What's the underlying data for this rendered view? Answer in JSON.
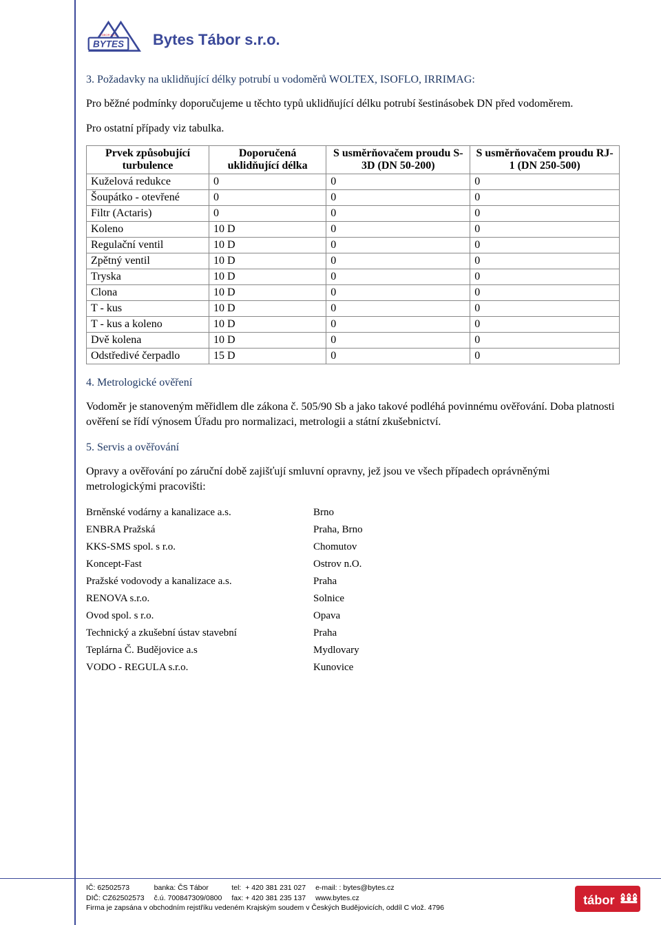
{
  "header": {
    "company": "Bytes Tábor s.r.o."
  },
  "section3": {
    "title": "3. Požadavky na uklidňující délky potrubí u vodoměrů WOLTEX, ISOFLO, IRRIMAG:",
    "p1": "Pro běžné podmínky doporučujeme u těchto typů uklidňující délku potrubí šestinásobek DN před vodoměrem.",
    "p2": "Pro ostatní případy viz tabulka."
  },
  "table1": {
    "headers": {
      "c1": "Prvek způsobující turbulence",
      "c2": "Doporučená uklidňující délka",
      "c3": "S usměrňovačem proudu S-3D (DN 50-200)",
      "c4": "S usměrňovačem proudu RJ-1 (DN 250-500)"
    },
    "rows": [
      {
        "c1": "Kuželová redukce",
        "c2": "0",
        "c3": "0",
        "c4": "0"
      },
      {
        "c1": "Šoupátko - otevřené",
        "c2": "0",
        "c3": "0",
        "c4": "0"
      },
      {
        "c1": "Filtr (Actaris)",
        "c2": "0",
        "c3": "0",
        "c4": "0"
      },
      {
        "c1": "Koleno",
        "c2": "10 D",
        "c3": "0",
        "c4": "0"
      },
      {
        "c1": "Regulační ventil",
        "c2": "10 D",
        "c3": "0",
        "c4": "0"
      },
      {
        "c1": "Zpětný ventil",
        "c2": "10 D",
        "c3": "0",
        "c4": "0"
      },
      {
        "c1": "Tryska",
        "c2": "10 D",
        "c3": "0",
        "c4": "0"
      },
      {
        "c1": "Clona",
        "c2": "10 D",
        "c3": "0",
        "c4": "0"
      },
      {
        "c1": "T - kus",
        "c2": "10 D",
        "c3": "0",
        "c4": "0"
      },
      {
        "c1": "T - kus a koleno",
        "c2": "10 D",
        "c3": "0",
        "c4": "0"
      },
      {
        "c1": "Dvě kolena",
        "c2": "10 D",
        "c3": "0",
        "c4": "0"
      },
      {
        "c1": "Odstředivé čerpadlo",
        "c2": "15 D",
        "c3": "0",
        "c4": "0"
      }
    ]
  },
  "section4": {
    "title": "4. Metrologické ověření",
    "p1": "Vodoměr je stanoveným měřidlem dle zákona č. 505/90 Sb a jako takové podléhá povinnému ověřování. Doba platnosti ověření se řídí výnosem Úřadu pro normalizaci, metrologii a státní zkušebnictví."
  },
  "section5": {
    "title": "5. Servis a ověřování",
    "p1": "Opravy a ověřování po záruční době zajišťují smluvní opravny, jež jsou ve všech případech oprávněnými metrologickými pracovišti:"
  },
  "table2": {
    "rows": [
      {
        "c1": "Brněnské vodárny a kanalizace a.s.",
        "c2": "Brno"
      },
      {
        "c1": "ENBRA Pražská",
        "c2": "Praha, Brno"
      },
      {
        "c1": "KKS-SMS spol. s r.o.",
        "c2": "Chomutov"
      },
      {
        "c1": "Koncept-Fast",
        "c2": "Ostrov n.O."
      },
      {
        "c1": "Pražské vodovody a kanalizace a.s.",
        "c2": "Praha"
      },
      {
        "c1": "RENOVA s.r.o.",
        "c2": "Solnice"
      },
      {
        "c1": "Ovod spol. s r.o.",
        "c2": "Opava"
      },
      {
        "c1": "Technický a zkušební ústav stavební",
        "c2": "Praha"
      },
      {
        "c1": "Teplárna Č. Budějovice a.s",
        "c2": "Mydlovary"
      },
      {
        "c1": "VODO - REGULA s.r.o.",
        "c2": "Kunovice"
      }
    ]
  },
  "footer": {
    "ic_label": "IČ:",
    "ic": "62502573",
    "dic_label": "DIČ:",
    "dic": "CZ62502573",
    "bank_label": "banka:",
    "bank": "ČS Tábor",
    "account_label": "č.ú.",
    "account": "700847309/0800",
    "tel_label": "tel:",
    "tel": "+ 420 381 231 027",
    "fax_label": "fax:",
    "fax": "+ 420 381 235 137",
    "email_label": "e-mail: :",
    "email": "bytes@bytes.cz",
    "www": "www.bytes.cz",
    "reg": "Firma je zapsána v obchodním  rejstříku vedeném Krajským soudem v Českých Budějovicích, oddíl C vlož. 4796"
  },
  "colors": {
    "brand_blue": "#3a4899",
    "tabor_red": "#d11f2f",
    "heading_blue": "#1f3864",
    "border_gray": "#888888"
  }
}
